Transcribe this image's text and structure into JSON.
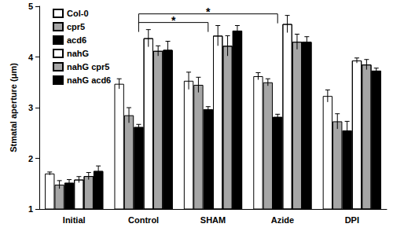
{
  "chart_data": {
    "type": "bar",
    "y_label": "Stmatal aperture (μm)",
    "categories": [
      "Initial",
      "Control",
      "SHAM",
      "Azide",
      "DPI"
    ],
    "ylim": [
      1,
      5
    ],
    "yticks": [
      1,
      2,
      3,
      4,
      5
    ],
    "grid": false,
    "legend": "upper left",
    "series": [
      {
        "name": "Col-0",
        "color": "#ffffff",
        "values": [
          1.7,
          3.47,
          3.53,
          3.62,
          3.23
        ],
        "errors": [
          0.03,
          0.1,
          0.17,
          0.07,
          0.12
        ]
      },
      {
        "name": "cpr5",
        "color": "#a6a6a6",
        "values": [
          1.48,
          2.85,
          3.45,
          3.5,
          2.73
        ],
        "errors": [
          0.08,
          0.15,
          0.15,
          0.07,
          0.15
        ]
      },
      {
        "name": "acd6",
        "color": "#000000",
        "values": [
          1.52,
          2.62,
          2.97,
          2.82,
          2.55
        ],
        "errors": [
          0.06,
          0.05,
          0.05,
          0.05,
          0.18
        ]
      },
      {
        "name": "nahG",
        "color": "#ffffff",
        "marker": "dotted",
        "values": [
          1.58,
          4.37,
          4.42,
          4.65,
          3.93
        ],
        "errors": [
          0.06,
          0.17,
          0.2,
          0.17,
          0.05
        ]
      },
      {
        "name": "nahG cpr5",
        "color": "#a6a6a6",
        "marker": "dotted",
        "values": [
          1.65,
          4.12,
          4.22,
          4.3,
          3.85
        ],
        "errors": [
          0.07,
          0.1,
          0.2,
          0.15,
          0.1
        ]
      },
      {
        "name": "nahG acd6",
        "color": "#000000",
        "marker": "dotted",
        "values": [
          1.75,
          4.14,
          4.52,
          4.3,
          3.73
        ],
        "errors": [
          0.1,
          0.17,
          0.1,
          0.1,
          0.05
        ]
      }
    ],
    "annotations": [
      {
        "text": "*",
        "from": [
          "Control",
          "acd6"
        ],
        "to": [
          "Azide",
          "acd6"
        ],
        "y": 4.85
      },
      {
        "text": "*",
        "from": [
          "Control",
          "acd6"
        ],
        "to": [
          "SHAM",
          "acd6"
        ],
        "y": 4.68
      }
    ]
  }
}
